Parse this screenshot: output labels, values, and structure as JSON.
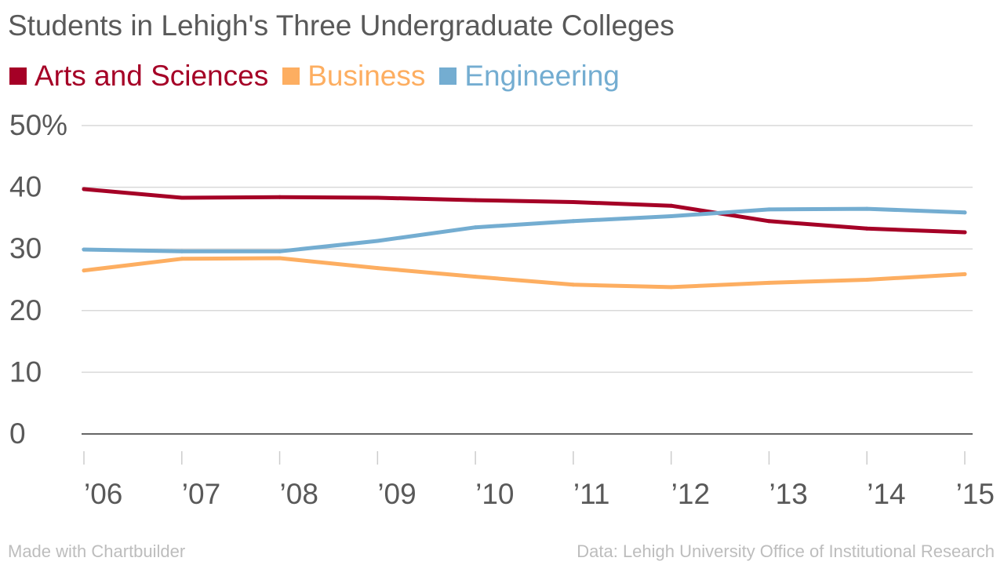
{
  "chart_data": {
    "type": "line",
    "title": "Students in Lehigh's Three Undergraduate Colleges",
    "xlabel": "",
    "ylabel": "",
    "categories": [
      "’06",
      "’07",
      "’08",
      "’09",
      "’10",
      "’11",
      "’12",
      "’13",
      "’14",
      "’15"
    ],
    "y_ticks": [
      "0",
      "10",
      "20",
      "30",
      "40",
      "50%"
    ],
    "ylim": [
      0,
      50
    ],
    "grid": true,
    "legend_position": "top-left",
    "series": [
      {
        "name": "Arts and Sciences",
        "color": "#a50026",
        "values": [
          39.7,
          38.3,
          38.4,
          38.3,
          37.9,
          37.6,
          37.0,
          34.5,
          33.3,
          32.7
        ]
      },
      {
        "name": "Business",
        "color": "#fdae61",
        "values": [
          26.5,
          28.4,
          28.5,
          26.9,
          25.5,
          24.2,
          23.8,
          24.5,
          25.0,
          25.9
        ]
      },
      {
        "name": "Engineering",
        "color": "#74add1",
        "values": [
          29.9,
          29.6,
          29.6,
          31.3,
          33.5,
          34.5,
          35.3,
          36.4,
          36.5,
          35.9
        ]
      }
    ]
  },
  "footer": {
    "left": "Made with Chartbuilder",
    "right": "Data: Lehigh University Office of Institutional Research"
  }
}
